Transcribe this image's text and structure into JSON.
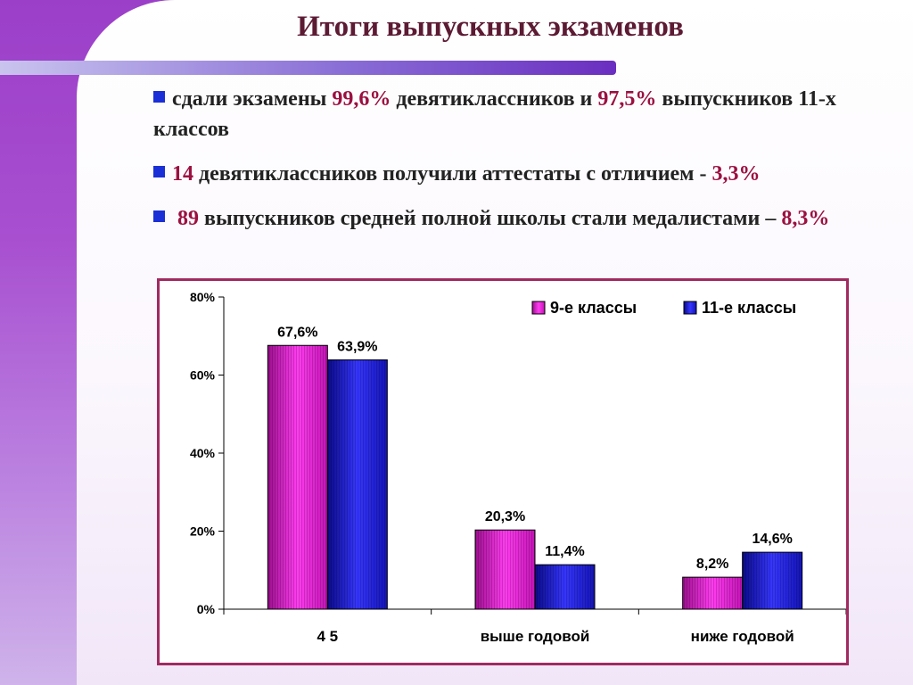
{
  "slide": {
    "title": "Итоги выпускных экзаменов",
    "bullets": [
      {
        "parts": [
          {
            "text": "сдали экзамены ",
            "hl": false
          },
          {
            "text": "99,6%",
            "hl": true
          },
          {
            "text": " девятиклассников и ",
            "hl": false
          },
          {
            "text": "97,5%",
            "hl": true
          },
          {
            "text": " выпускников 11-х классов",
            "hl": false
          }
        ]
      },
      {
        "parts": [
          {
            "text": "14",
            "hl": true
          },
          {
            "text": " девятиклассников получили аттестаты с отличием - ",
            "hl": false
          },
          {
            "text": "3,3%",
            "hl": true
          }
        ]
      },
      {
        "parts": [
          {
            "text": " 89",
            "hl": true
          },
          {
            "text": " выпускников средней полной школы стали медалистами – ",
            "hl": false
          },
          {
            "text": "8,3%",
            "hl": true
          }
        ]
      }
    ]
  },
  "colors": {
    "series_9": "#e31ad6",
    "series_11": "#1f1fd8",
    "frame": "#a12a60",
    "highlight": "#9b1040",
    "bullet": "#1a2fd6"
  },
  "chart_data": {
    "type": "bar",
    "categories": [
      "4 5",
      "выше годовой",
      "ниже годовой"
    ],
    "series": [
      {
        "name": "9-е классы",
        "values": [
          67.6,
          20.3,
          8.2
        ],
        "labels": [
          "67,6%",
          "20,3%",
          "8,2%"
        ]
      },
      {
        "name": "11-е классы",
        "values": [
          63.9,
          11.4,
          14.6
        ],
        "labels": [
          "63,9%",
          "11,4%",
          "14,6%"
        ]
      }
    ],
    "yticks": [
      0,
      20,
      40,
      60,
      80
    ],
    "ytick_labels": [
      "0%",
      "20%",
      "40%",
      "60%",
      "80%"
    ],
    "ylim": [
      0,
      80
    ],
    "grid": false,
    "legend": "top-right"
  }
}
